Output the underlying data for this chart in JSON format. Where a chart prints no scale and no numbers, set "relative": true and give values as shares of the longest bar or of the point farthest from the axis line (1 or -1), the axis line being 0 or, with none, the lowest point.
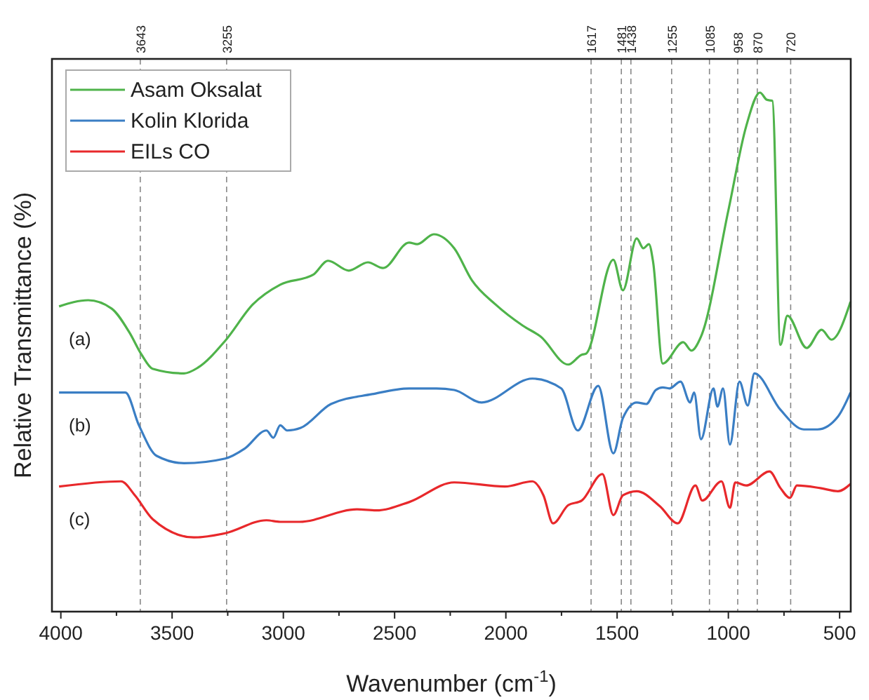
{
  "chart_data": {
    "type": "line",
    "relative": true,
    "xlabel": "Wavenumber (cm$^{-1}$)",
    "ylabel": "Relative Transmittance (%)",
    "xlim": [
      4040,
      450
    ],
    "xticks": [
      4000,
      {
        "value": 3750,
        "label": null
      },
      3500,
      {
        "value": 3250,
        "label": null
      },
      3000,
      {
        "value": 2750,
        "label": null
      },
      2500,
      {
        "value": 2250,
        "label": null
      },
      2000,
      {
        "value": 1750,
        "label": null
      },
      1500,
      {
        "value": 1250,
        "label": null
      },
      1000,
      {
        "value": 750,
        "label": null
      },
      500
    ],
    "grid": false,
    "legend": "top left",
    "line_style": "solid",
    "marker": "none",
    "tick_labels": "x",
    "series": [
      {
        "name": "Asam Oksalat",
        "color": "#4fb34a",
        "x": [
          4008,
          3877,
          3772,
          3692,
          3637,
          3588,
          3446,
          3384,
          3261,
          3137,
          3014,
          2866,
          2799,
          2706,
          2620,
          2552,
          2435,
          2398,
          2324,
          2232,
          2152,
          2047,
          1924,
          1844,
          1720,
          1659,
          1640,
          1517,
          1474,
          1412,
          1382,
          1357,
          1338,
          1295,
          1203,
          1166,
          1123,
          1000,
          920,
          858,
          827,
          802,
          766,
          735,
          648,
          581,
          537,
          451
        ],
        "values": [
          0.588,
          0.6,
          0.584,
          0.538,
          0.495,
          0.468,
          0.459,
          0.47,
          0.522,
          0.592,
          0.63,
          0.649,
          0.676,
          0.657,
          0.673,
          0.662,
          0.711,
          0.708,
          0.727,
          0.7,
          0.638,
          0.592,
          0.551,
          0.53,
          0.476,
          0.495,
          0.497,
          0.678,
          0.619,
          0.719,
          0.7,
          0.708,
          0.673,
          0.478,
          0.519,
          0.503,
          0.53,
          0.773,
          0.935,
          1,
          0.986,
          0.984,
          0.514,
          0.57,
          0.508,
          0.543,
          0.524,
          0.597
        ]
      },
      {
        "name": "Kolin Klorida",
        "color": "#3a7ec4",
        "x": [
          4008,
          3710,
          3649,
          3569,
          3446,
          3261,
          3174,
          3076,
          3045,
          3014,
          2983,
          2922,
          2786,
          2601,
          2435,
          2312,
          2232,
          2109,
          1881,
          1751,
          1677,
          1585,
          1517,
          1474,
          1412,
          1369,
          1326,
          1295,
          1265,
          1215,
          1172,
          1154,
          1123,
          1067,
          1049,
          1024,
          993,
          950,
          913,
          883,
          766,
          661,
          599,
          507,
          451
        ],
        "values": [
          0.422,
          0.422,
          0.359,
          0.3,
          0.286,
          0.295,
          0.314,
          0.349,
          0.335,
          0.359,
          0.349,
          0.354,
          0.4,
          0.419,
          0.43,
          0.43,
          0.427,
          0.403,
          0.449,
          0.43,
          0.349,
          0.435,
          0.305,
          0.373,
          0.403,
          0.4,
          0.427,
          0.432,
          0.43,
          0.443,
          0.403,
          0.422,
          0.332,
          0.43,
          0.395,
          0.43,
          0.322,
          0.443,
          0.397,
          0.459,
          0.389,
          0.351,
          0.351,
          0.376,
          0.422
        ]
      },
      {
        "name": "EILs CO",
        "color": "#e8282b",
        "x": [
          4008,
          3729,
          3667,
          3587,
          3402,
          3261,
          3076,
          3014,
          2928,
          2669,
          2583,
          2435,
          2232,
          2004,
          1881,
          1831,
          1788,
          1720,
          1659,
          1566,
          1517,
          1474,
          1412,
          1308,
          1228,
          1148,
          1117,
          1031,
          993,
          969,
          920,
          815,
          766,
          723,
          692,
          587,
          507,
          451
        ],
        "values": [
          0.241,
          0.251,
          0.224,
          0.178,
          0.143,
          0.151,
          0.176,
          0.173,
          0.173,
          0.197,
          0.195,
          0.211,
          0.249,
          0.241,
          0.251,
          0.224,
          0.17,
          0.205,
          0.214,
          0.265,
          0.186,
          0.224,
          0.232,
          0.203,
          0.17,
          0.243,
          0.214,
          0.251,
          0.2,
          0.249,
          0.243,
          0.27,
          0.238,
          0.219,
          0.243,
          0.238,
          0.232,
          0.246
        ]
      }
    ],
    "ref_lines": [
      {
        "axis": "x",
        "value": 3643,
        "label": "3643",
        "color": "#888888",
        "line_style": "dashed"
      },
      {
        "axis": "x",
        "value": 3255,
        "label": "3255",
        "color": "#888888",
        "line_style": "dashed"
      },
      {
        "axis": "x",
        "value": 1617,
        "label": "1617",
        "color": "#888888",
        "line_style": "dashed"
      },
      {
        "axis": "x",
        "value": 1481,
        "label": "1481",
        "color": "#888888",
        "line_style": "dashed"
      },
      {
        "axis": "x",
        "value": 1438,
        "label": "1438",
        "color": "#888888",
        "line_style": "dashed"
      },
      {
        "axis": "x",
        "value": 1255,
        "label": "1255",
        "color": "#888888",
        "line_style": "dashed"
      },
      {
        "axis": "x",
        "value": 1085,
        "label": "1085",
        "color": "#888888",
        "line_style": "dashed"
      },
      {
        "axis": "x",
        "value": 958,
        "label": "958",
        "color": "#888888",
        "line_style": "dashed"
      },
      {
        "axis": "x",
        "value": 870,
        "label": "870",
        "color": "#888888",
        "line_style": "dashed"
      },
      {
        "axis": "x",
        "value": 720,
        "label": "720",
        "color": "#888888",
        "line_style": "dashed"
      }
    ],
    "annotations": [
      "(a)",
      "(b)",
      "(c)"
    ]
  }
}
